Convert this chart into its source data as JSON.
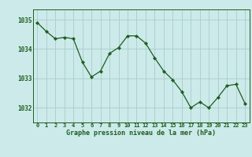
{
  "x": [
    0,
    1,
    2,
    3,
    4,
    5,
    6,
    7,
    8,
    9,
    10,
    11,
    12,
    13,
    14,
    15,
    16,
    17,
    18,
    19,
    20,
    21,
    22,
    23
  ],
  "y": [
    1034.9,
    1034.6,
    1034.35,
    1034.4,
    1034.35,
    1033.55,
    1033.05,
    1033.25,
    1033.85,
    1034.05,
    1034.45,
    1034.45,
    1034.2,
    1033.7,
    1033.25,
    1032.95,
    1032.55,
    1032.0,
    1032.2,
    1032.0,
    1032.35,
    1032.75,
    1032.8,
    1032.15
  ],
  "line_color": "#1e5c1e",
  "marker_color": "#1e5c1e",
  "bg_color": "#cceaea",
  "grid_color": "#aacccc",
  "axis_color": "#1e5c1e",
  "tick_color": "#1e5c1e",
  "xlabel": "Graphe pression niveau de la mer (hPa)",
  "xlabel_color": "#1e5c1e",
  "ylim_min": 1031.5,
  "ylim_max": 1035.35,
  "yticks": [
    1032,
    1033,
    1034,
    1035
  ],
  "ytick_labels": [
    "1032",
    "1033",
    "1034",
    "1035"
  ],
  "xticks": [
    0,
    1,
    2,
    3,
    4,
    5,
    6,
    7,
    8,
    9,
    10,
    11,
    12,
    13,
    14,
    15,
    16,
    17,
    18,
    19,
    20,
    21,
    22,
    23
  ]
}
